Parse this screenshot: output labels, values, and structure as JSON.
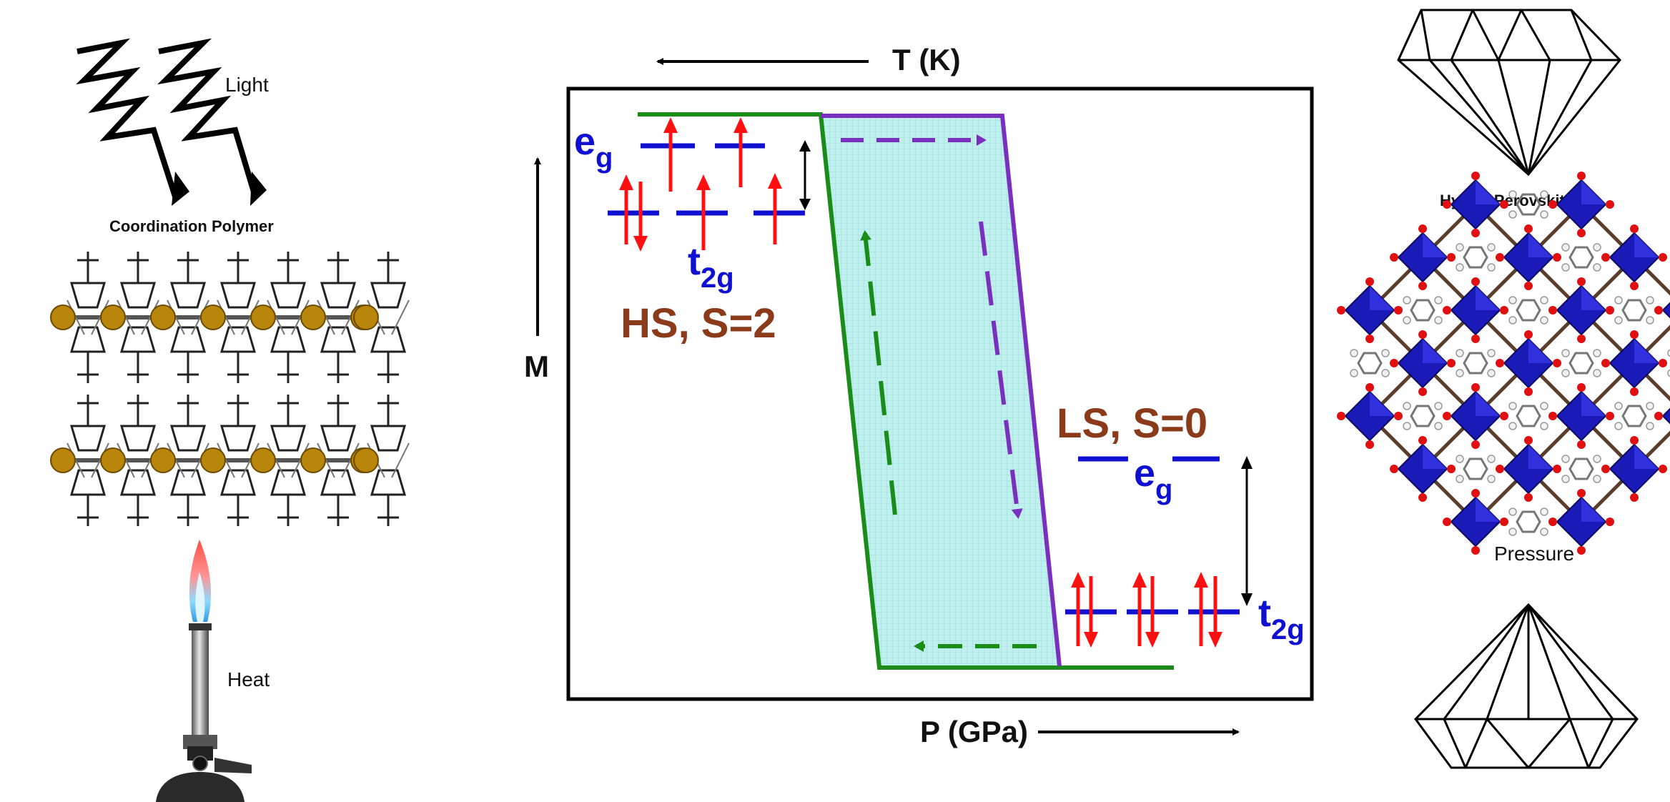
{
  "left_panel": {
    "light_label": "Light",
    "polymer_label": "Coordination Polymer",
    "heat_label": "Heat"
  },
  "main_plot": {
    "top_axis_label": "T (K)",
    "bottom_axis_label": "P (GPa)",
    "y_axis_label": "M",
    "hs_state": {
      "label": "HS, S=2",
      "eg_main": "e",
      "eg_sub": "g",
      "t2g_main": "t",
      "t2g_sub": "2g"
    },
    "ls_state": {
      "label": "LS, S=0",
      "eg_main": "e",
      "eg_sub": "g",
      "t2g_main": "t",
      "t2g_sub": "2g"
    }
  },
  "right_panel": {
    "perovskite_label": "Hybrid Perovskite",
    "pressure_label": "Pressure"
  },
  "colors": {
    "heating_branch": "#1a8c1a",
    "cooling_branch": "#7b2fbe",
    "hysteresis_fill": "#bff0ee",
    "state_label": "#8b3a1a",
    "orbital": "#1010d0",
    "spin_arrow": "#ff1010",
    "metal_node": "#b8860b",
    "octahedron": "#1a1ab8"
  }
}
